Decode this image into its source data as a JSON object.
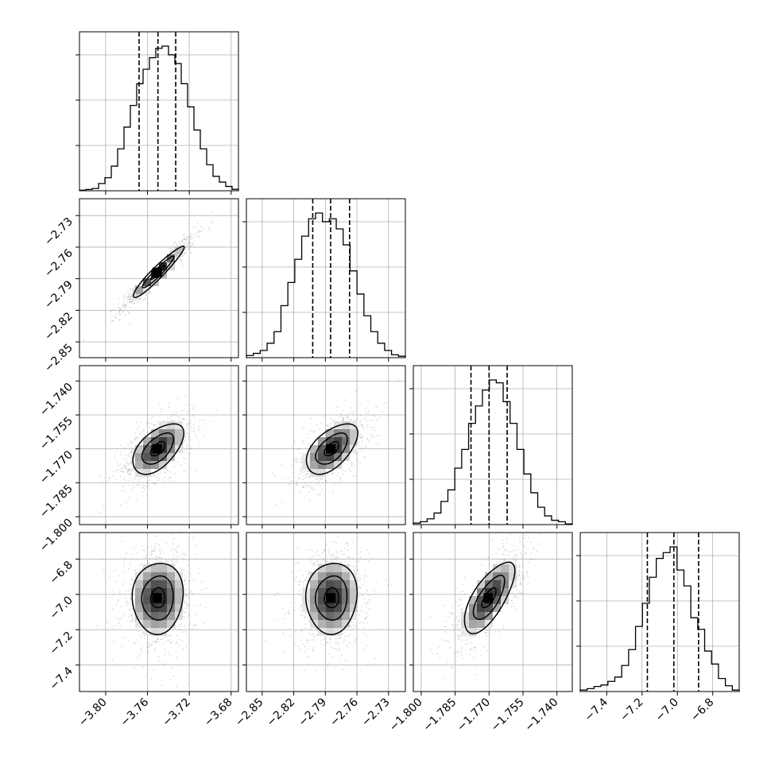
{
  "chart_data": {
    "type": "corner",
    "dims": [
      {
        "ticks": [
          -3.8,
          -3.76,
          -3.72,
          -3.68
        ],
        "tick_labels": [
          "−3.80",
          "−3.76",
          "−3.72",
          "−3.68"
        ],
        "range": [
          -3.825,
          -3.673
        ],
        "quantiles": [
          -3.768,
          -3.75,
          -3.733
        ],
        "mean": -3.75,
        "sd": 0.0175
      },
      {
        "ticks": [
          -2.85,
          -2.82,
          -2.79,
          -2.76,
          -2.73
        ],
        "tick_labels": [
          "−2.85",
          "−2.82",
          "−2.79",
          "−2.76",
          "−2.73"
        ],
        "range": [
          -2.865,
          -2.714
        ],
        "quantiles": [
          -2.802,
          -2.785,
          -2.767
        ],
        "mean": -2.784,
        "sd": 0.0175
      },
      {
        "ticks": [
          -1.8,
          -1.785,
          -1.77,
          -1.755,
          -1.74
        ],
        "tick_labels": [
          "−1.800",
          "−1.785",
          "−1.770",
          "−1.755",
          "−1.740"
        ],
        "range": [
          -1.8035,
          -1.7332
        ],
        "quantiles": [
          -1.778,
          -1.77,
          -1.762
        ],
        "mean": -1.77,
        "sd": 0.008
      },
      {
        "ticks": [
          -7.4,
          -7.2,
          -7.0,
          -6.8
        ],
        "tick_labels": [
          "−7.4",
          "−7.2",
          "−7.0",
          "−6.8"
        ],
        "range": [
          -7.55,
          -6.65
        ],
        "quantiles": [
          -7.17,
          -7.02,
          -6.88
        ],
        "mean": -7.02,
        "sd": 0.145
      }
    ],
    "correlations": [
      [
        1.0,
        0.95,
        0.55,
        0.05
      ],
      [
        0.95,
        1.0,
        0.55,
        0.05
      ],
      [
        0.55,
        0.55,
        1.0,
        0.7
      ],
      [
        0.05,
        0.05,
        0.7,
        1.0
      ]
    ],
    "histograms": [
      [
        0.004,
        0.009,
        0.016,
        0.05,
        0.09,
        0.17,
        0.29,
        0.44,
        0.59,
        0.74,
        0.84,
        0.92,
        0.985,
        1.0,
        0.94,
        0.88,
        0.74,
        0.58,
        0.42,
        0.29,
        0.18,
        0.1,
        0.06,
        0.03,
        0.01
      ],
      [
        0.015,
        0.03,
        0.05,
        0.1,
        0.18,
        0.36,
        0.52,
        0.68,
        0.84,
        0.96,
        1.0,
        0.94,
        0.96,
        0.89,
        0.78,
        0.6,
        0.44,
        0.29,
        0.18,
        0.1,
        0.05,
        0.02,
        0.01
      ],
      [
        0.01,
        0.02,
        0.04,
        0.08,
        0.16,
        0.24,
        0.39,
        0.52,
        0.7,
        0.82,
        0.93,
        1.0,
        0.98,
        0.85,
        0.7,
        0.52,
        0.35,
        0.22,
        0.12,
        0.06,
        0.03,
        0.02,
        0.005
      ],
      [
        0.01,
        0.02,
        0.035,
        0.045,
        0.07,
        0.1,
        0.18,
        0.29,
        0.45,
        0.61,
        0.79,
        0.92,
        0.96,
        1.0,
        0.84,
        0.73,
        0.51,
        0.43,
        0.28,
        0.19,
        0.09,
        0.04,
        0.01
      ]
    ],
    "contour_levels": [
      0.39,
      0.86,
      1.39
    ],
    "grid": true,
    "title": "",
    "labels": []
  }
}
